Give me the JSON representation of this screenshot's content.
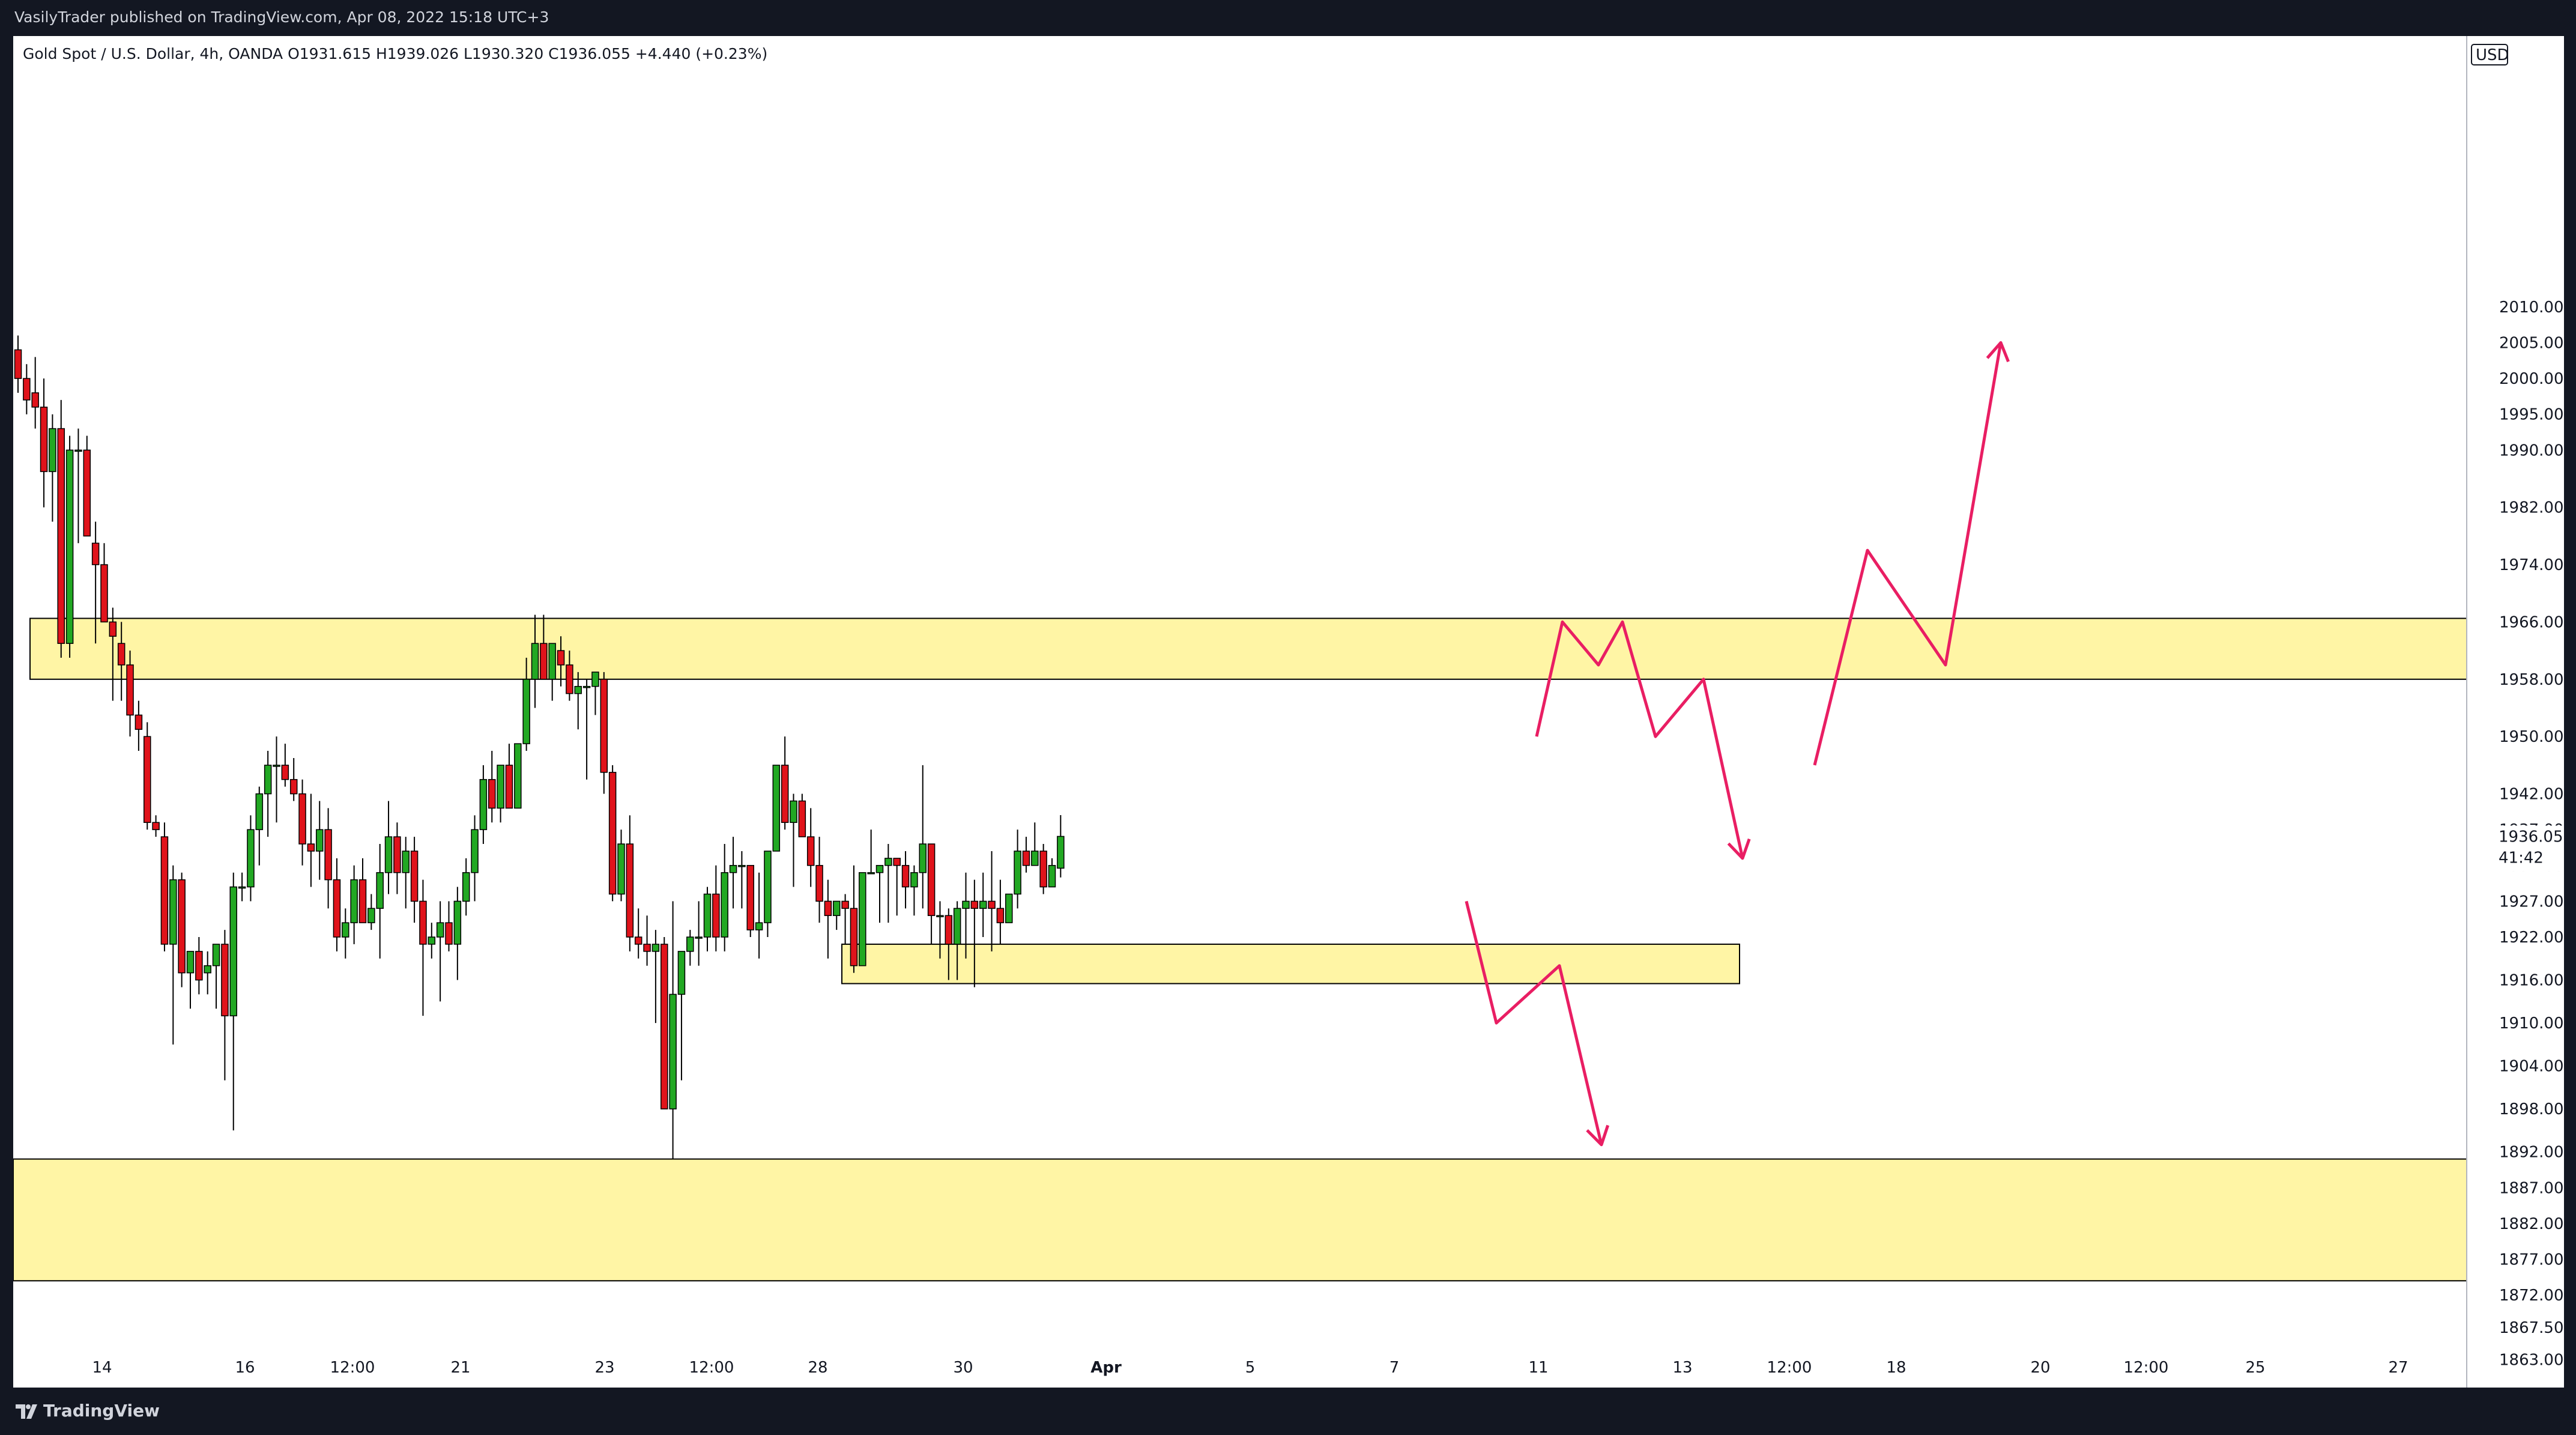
{
  "header": {
    "published": "VasilyTrader published on TradingView.com, Apr 08, 2022 15:18 UTC+3"
  },
  "symbol_line": "Gold Spot / U.S. Dollar, 4h, OANDA  O1931.615  H1939.026  L1930.320  C1936.055  +4.440 (+0.23%)",
  "currency": "USD",
  "last_price": "1936.055",
  "countdown": "41:42",
  "footer": {
    "brand": "TradingView"
  },
  "colors": {
    "up": "#089981",
    "up_fill": "#22a823",
    "down": "#e0131b",
    "zone_fill": "#fff5a5",
    "arrow": "#e91e63",
    "price_badge": "#22a823"
  },
  "chart_data": {
    "type": "candlestick",
    "title": "Gold Spot / U.S. Dollar, 4h, OANDA",
    "ylim": [
      1859,
      2012
    ],
    "y_ticks": [
      "2010.000",
      "2005.000",
      "2000.000",
      "1995.000",
      "1990.000",
      "1982.000",
      "1974.000",
      "1966.000",
      "1958.000",
      "1950.000",
      "1942.000",
      "1937.000",
      "1932.000",
      "1927.000",
      "1922.000",
      "1916.000",
      "1910.000",
      "1904.000",
      "1898.000",
      "1892.000",
      "1887.000",
      "1882.000",
      "1877.000",
      "1872.000",
      "1867.500",
      "1863.000"
    ],
    "x_ticks": [
      "14",
      "16",
      "12:00",
      "21",
      "23",
      "12:00",
      "28",
      "30",
      "Apr",
      "5",
      "7",
      "11",
      "13",
      "12:00",
      "18",
      "20",
      "12:00",
      "25",
      "27"
    ],
    "candles": [
      [
        2004,
        2006,
        1998,
        2000
      ],
      [
        2000,
        2002,
        1995,
        1997
      ],
      [
        1998,
        2003,
        1993,
        1996
      ],
      [
        1996,
        2000,
        1982,
        1987
      ],
      [
        1987,
        1995,
        1980,
        1993
      ],
      [
        1993,
        1997,
        1961,
        1963
      ],
      [
        1963,
        1992,
        1961,
        1990
      ],
      [
        1990,
        1993,
        1977,
        1990
      ],
      [
        1990,
        1992,
        1978,
        1978
      ],
      [
        1977,
        1980,
        1963,
        1974
      ],
      [
        1974,
        1977,
        1966,
        1966
      ],
      [
        1966,
        1968,
        1955,
        1964
      ],
      [
        1963,
        1966,
        1955,
        1960
      ],
      [
        1960,
        1962,
        1950,
        1953
      ],
      [
        1953,
        1955,
        1948,
        1951
      ],
      [
        1950,
        1952,
        1937,
        1938
      ],
      [
        1938,
        1939,
        1936,
        1937
      ],
      [
        1936,
        1938,
        1920,
        1921
      ],
      [
        1921,
        1932,
        1907,
        1930
      ],
      [
        1930,
        1931,
        1915,
        1917
      ],
      [
        1917,
        1919,
        1912,
        1920
      ],
      [
        1920,
        1922,
        1914,
        1916
      ],
      [
        1917,
        1920,
        1914,
        1918
      ],
      [
        1918,
        1920,
        1912,
        1921
      ],
      [
        1921,
        1923,
        1902,
        1911
      ],
      [
        1911,
        1931,
        1895,
        1929
      ],
      [
        1929,
        1931,
        1927,
        1929
      ],
      [
        1929,
        1939,
        1927,
        1937
      ],
      [
        1937,
        1943,
        1932,
        1942
      ],
      [
        1942,
        1948,
        1936,
        1946
      ],
      [
        1946,
        1950,
        1938,
        1946
      ],
      [
        1946,
        1949,
        1943,
        1944
      ],
      [
        1944,
        1947,
        1941,
        1942
      ],
      [
        1942,
        1944,
        1932,
        1935
      ],
      [
        1935,
        1942,
        1929,
        1934
      ],
      [
        1934,
        1941,
        1930,
        1937
      ],
      [
        1937,
        1940,
        1926,
        1930
      ],
      [
        1930,
        1933,
        1920,
        1922
      ],
      [
        1922,
        1926,
        1919,
        1924
      ],
      [
        1924,
        1932,
        1921,
        1930
      ],
      [
        1930,
        1933,
        1925,
        1924
      ],
      [
        1924,
        1928,
        1923,
        1926
      ],
      [
        1926,
        1935,
        1919,
        1931
      ],
      [
        1931,
        1941,
        1928,
        1936
      ],
      [
        1936,
        1938,
        1928,
        1931
      ],
      [
        1931,
        1936,
        1926,
        1934
      ],
      [
        1934,
        1936,
        1924,
        1927
      ],
      [
        1927,
        1930,
        1911,
        1921
      ],
      [
        1921,
        1924,
        1919,
        1922
      ],
      [
        1922,
        1927,
        1913,
        1924
      ],
      [
        1924,
        1927,
        1920,
        1921
      ],
      [
        1921,
        1929,
        1916,
        1927
      ],
      [
        1927,
        1933,
        1925,
        1931
      ],
      [
        1931,
        1939,
        1927,
        1937
      ],
      [
        1937,
        1946,
        1935,
        1944
      ],
      [
        1944,
        1948,
        1938,
        1940
      ],
      [
        1940,
        1946,
        1938,
        1946
      ],
      [
        1946,
        1949,
        1941,
        1940
      ],
      [
        1940,
        1949,
        1940,
        1949
      ],
      [
        1949,
        1961,
        1948,
        1958
      ],
      [
        1958,
        1967,
        1954,
        1963
      ],
      [
        1963,
        1967,
        1958,
        1958
      ],
      [
        1958,
        1963,
        1955,
        1963
      ],
      [
        1962,
        1964,
        1957,
        1960
      ],
      [
        1960,
        1962,
        1955,
        1956
      ],
      [
        1956,
        1959,
        1951,
        1957
      ],
      [
        1957,
        1958,
        1944,
        1957
      ],
      [
        1957,
        1959,
        1953,
        1959
      ],
      [
        1958,
        1959,
        1942,
        1945
      ],
      [
        1945,
        1946,
        1927,
        1928
      ],
      [
        1928,
        1937,
        1927,
        1935
      ],
      [
        1935,
        1939,
        1920,
        1922
      ],
      [
        1922,
        1926,
        1919,
        1921
      ],
      [
        1921,
        1925,
        1918,
        1920
      ],
      [
        1920,
        1923,
        1910,
        1921
      ],
      [
        1921,
        1922,
        1898,
        1898
      ],
      [
        1898,
        1927,
        1891,
        1914
      ],
      [
        1914,
        1920,
        1902,
        1920
      ],
      [
        1920,
        1923,
        1918,
        1922
      ],
      [
        1922,
        1927,
        1918,
        1922
      ],
      [
        1922,
        1929,
        1920,
        1928
      ],
      [
        1928,
        1932,
        1920,
        1922
      ],
      [
        1922,
        1935,
        1920,
        1931
      ],
      [
        1931,
        1936,
        1926,
        1932
      ],
      [
        1932,
        1934,
        1926,
        1932
      ],
      [
        1932,
        1932,
        1922,
        1923
      ],
      [
        1923,
        1931,
        1919,
        1924
      ],
      [
        1924,
        1934,
        1922,
        1934
      ],
      [
        1934,
        1946,
        1934,
        1946
      ],
      [
        1946,
        1950,
        1937,
        1938
      ],
      [
        1938,
        1942,
        1929,
        1941
      ],
      [
        1941,
        1942,
        1936,
        1936
      ],
      [
        1936,
        1940,
        1929,
        1932
      ],
      [
        1932,
        1936,
        1924,
        1927
      ],
      [
        1927,
        1930,
        1919,
        1925
      ],
      [
        1925,
        1927,
        1923,
        1927
      ],
      [
        1927,
        1928,
        1921,
        1926
      ],
      [
        1926,
        1932,
        1917,
        1918
      ],
      [
        1918,
        1931,
        1918,
        1931
      ],
      [
        1931,
        1937,
        1931,
        1931
      ],
      [
        1931,
        1932,
        1924,
        1932
      ],
      [
        1932,
        1935,
        1924,
        1933
      ],
      [
        1933,
        1932,
        1925,
        1932
      ],
      [
        1932,
        1934,
        1926,
        1929
      ],
      [
        1929,
        1932,
        1925,
        1931
      ],
      [
        1931,
        1946,
        1926,
        1935
      ],
      [
        1935,
        1935,
        1921,
        1925
      ],
      [
        1925,
        1927,
        1919,
        1925
      ],
      [
        1925,
        1926,
        1916,
        1921
      ],
      [
        1921,
        1927,
        1916,
        1926
      ],
      [
        1926,
        1931,
        1919,
        1927
      ],
      [
        1927,
        1930,
        1915,
        1926
      ],
      [
        1926,
        1931,
        1922,
        1927
      ],
      [
        1927,
        1934,
        1920,
        1926
      ],
      [
        1926,
        1930,
        1921,
        1924
      ],
      [
        1924,
        1928,
        1924,
        1928
      ],
      [
        1928,
        1937,
        1926,
        1934
      ],
      [
        1934,
        1936,
        1931,
        1932
      ],
      [
        1932,
        1938,
        1932,
        1934
      ],
      [
        1934,
        1935,
        1928,
        1929
      ],
      [
        1929,
        1933,
        1929,
        1932
      ],
      [
        1931.615,
        1939.026,
        1930.32,
        1936.055
      ]
    ],
    "zones": [
      {
        "from": 1958,
        "to": 1966.5
      },
      {
        "from": 1915.5,
        "to": 1921
      },
      {
        "from": 1874,
        "to": 1891
      }
    ],
    "projection_arrows": [
      [
        [
          1950,
          1950
        ],
        [
          1952,
          1966
        ],
        [
          1955,
          1960
        ],
        [
          1957,
          1966
        ],
        [
          1960,
          1950
        ],
        [
          1962,
          1958
        ],
        [
          1965,
          1933
        ]
      ],
      [
        [
          1968,
          1946
        ],
        [
          1973,
          1976
        ],
        [
          1978,
          1960
        ],
        [
          1982,
          2005
        ]
      ],
      [
        [
          1942,
          1927
        ],
        [
          1946,
          1910
        ],
        [
          1949,
          1918
        ],
        [
          1952,
          1893
        ]
      ]
    ]
  }
}
